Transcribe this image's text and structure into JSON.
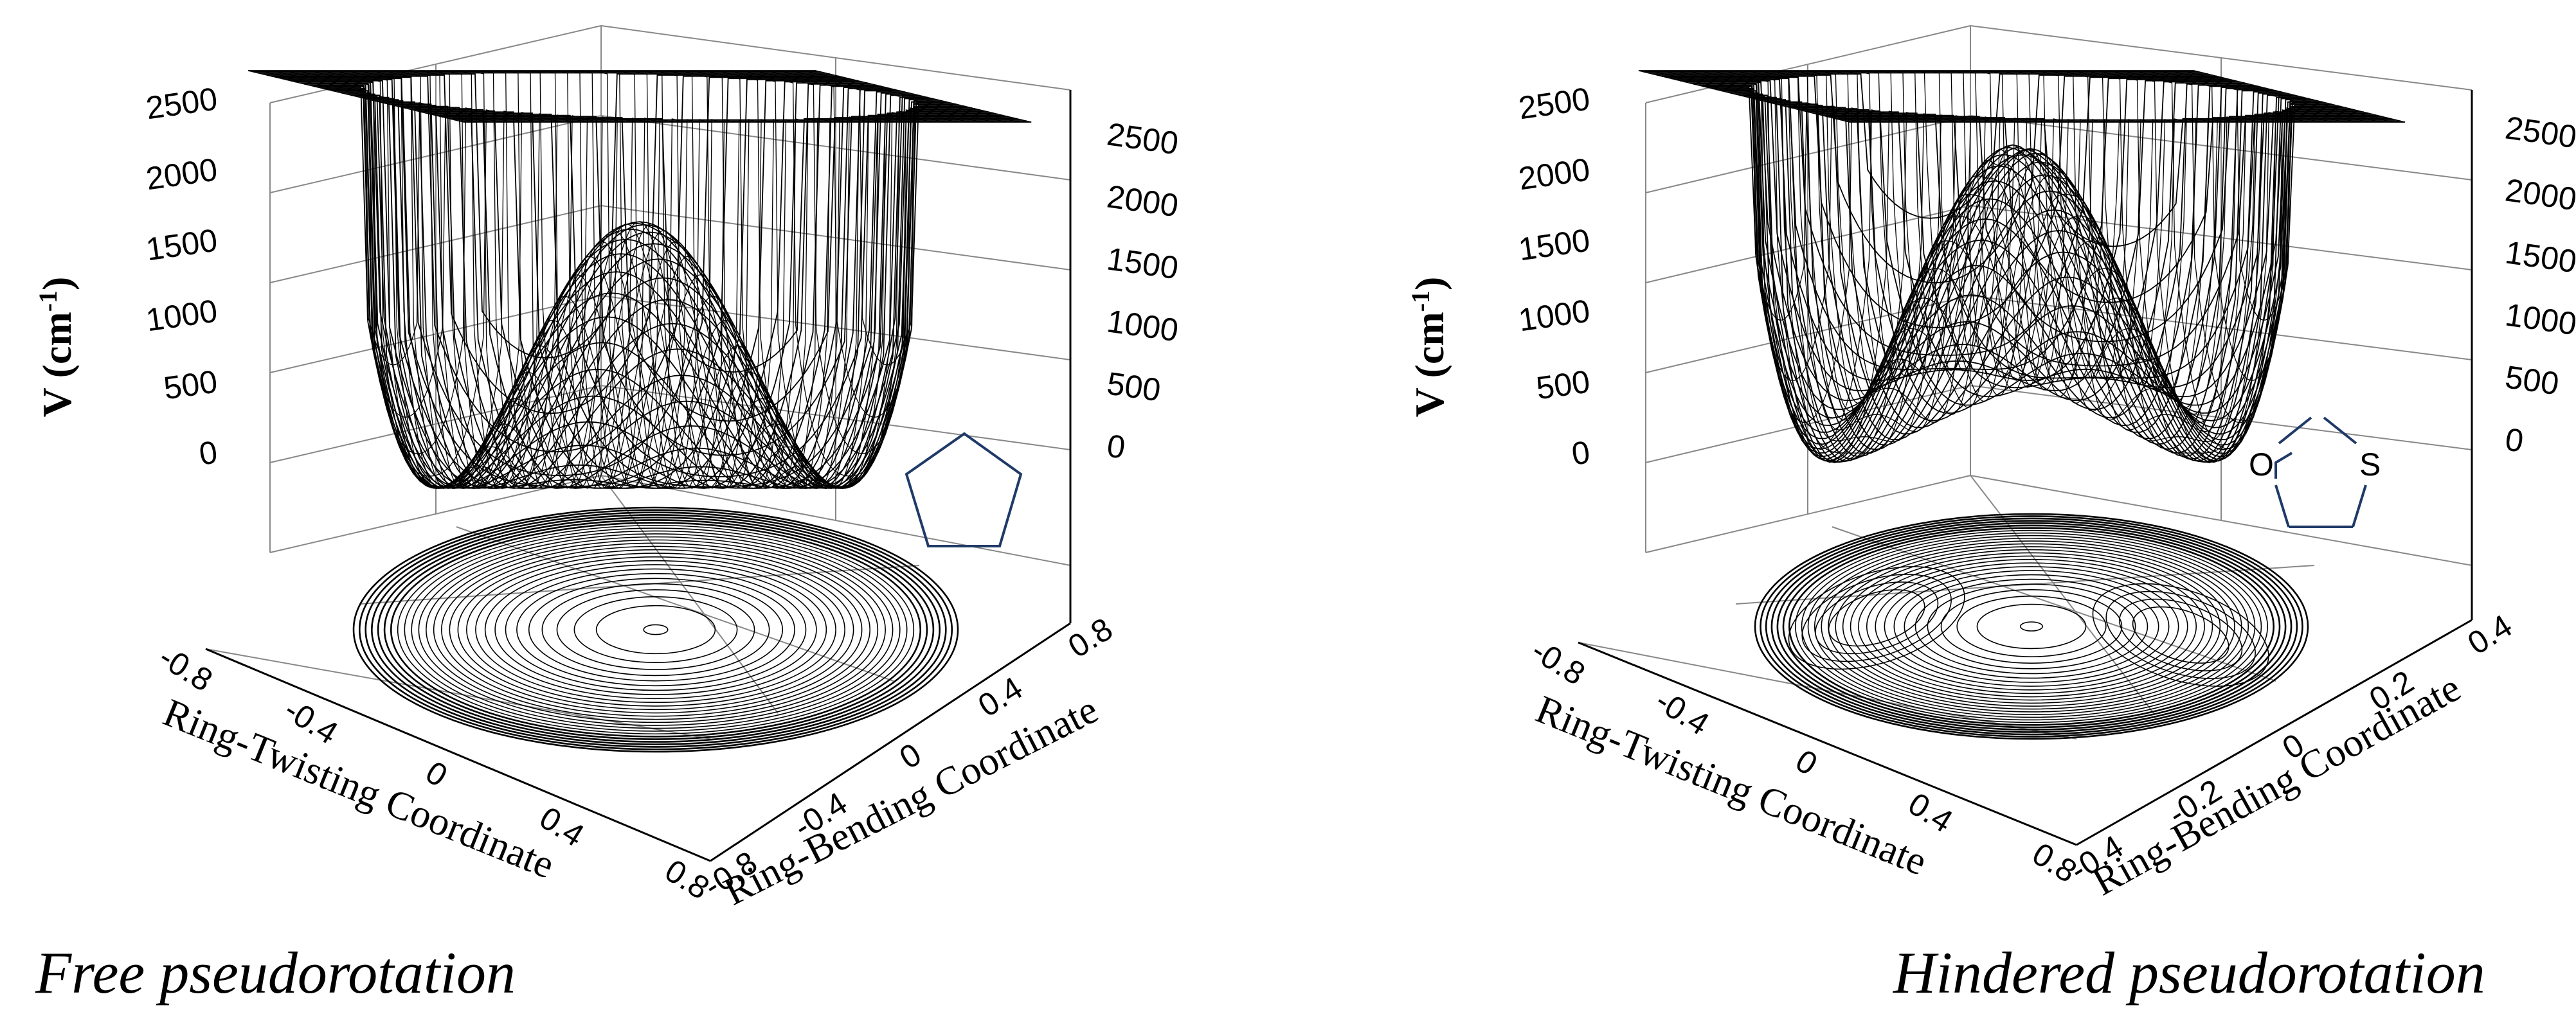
{
  "chart_data": [
    {
      "type": "surface3d",
      "caption": "Free pseudorotation",
      "zlabel": "V (cm",
      "zlabel_sup": "-1",
      "zlabel_close": ")",
      "xlabel": "Ring-Twisting Coordinate",
      "ylabel": "Ring-Bending Coordinate",
      "z_ticks": [
        "2500",
        "2000",
        "1500",
        "1000",
        "500",
        "0"
      ],
      "z_ticks_right": [
        "2500",
        "2000",
        "1500",
        "1000",
        "500",
        "0"
      ],
      "x_ticks": [
        "-0.8",
        "-0.4",
        "0",
        "0.4",
        "0.8"
      ],
      "y_ticks": [
        "-0.8",
        "-0.4",
        "0",
        "0.4",
        "0.8"
      ],
      "x_range": [
        -0.8,
        0.8
      ],
      "y_range": [
        -0.8,
        0.8
      ],
      "z_range": [
        0,
        2500
      ],
      "barrier_height": 1700,
      "pseudorotation_barrier": 0,
      "molecule": {
        "ring": "pentagon",
        "atoms": []
      }
    },
    {
      "type": "surface3d",
      "caption": "Hindered pseudorotation",
      "zlabel": "V (cm",
      "zlabel_sup": "-1",
      "zlabel_close": ")",
      "xlabel": "Ring-Twisting Coordinate",
      "ylabel": "Ring-Bending Coordinate",
      "z_ticks": [
        "2500",
        "2000",
        "1500",
        "1000",
        "500",
        "0"
      ],
      "z_ticks_right": [
        "2500",
        "2000",
        "1500",
        "1000",
        "500",
        "0"
      ],
      "x_ticks": [
        "-0.8",
        "-0.4",
        "0",
        "0.4",
        "0.8"
      ],
      "y_ticks": [
        "-0.4",
        "-0.2",
        "0",
        "0.2",
        "0.4"
      ],
      "x_range": [
        -0.8,
        0.8
      ],
      "y_range": [
        -0.4,
        0.4
      ],
      "z_range": [
        0,
        2500
      ],
      "barrier_height": 2100,
      "pseudorotation_barrier": 600,
      "molecule": {
        "ring": "pentagon",
        "atoms": [
          "O",
          "S"
        ]
      }
    }
  ]
}
